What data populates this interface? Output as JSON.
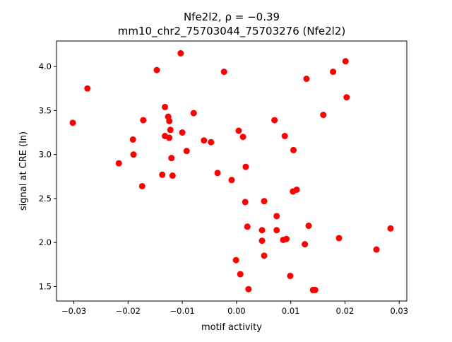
{
  "chart_data": {
    "type": "scatter",
    "title": "Nfe2l2, ρ = −0.39",
    "subtitle": "mm10_chr2_75703044_75703276 (Nfe2l2)",
    "xlabel": "motif activity",
    "ylabel": "signal at CRE (ln)",
    "xlim": [
      -0.0332,
      0.0314
    ],
    "ylim": [
      1.335,
      4.29
    ],
    "xticks": [
      -0.03,
      -0.02,
      -0.01,
      0.0,
      0.01,
      0.02,
      0.03
    ],
    "xtick_labels": [
      "−0.03",
      "−0.02",
      "−0.01",
      "0.00",
      "0.01",
      "0.02",
      "0.03"
    ],
    "yticks": [
      1.5,
      2.0,
      2.5,
      3.0,
      3.5,
      4.0
    ],
    "ytick_labels": [
      "1.5",
      "2.0",
      "2.5",
      "3.0",
      "3.5",
      "4.0"
    ],
    "grid": false,
    "marker_color": "#ff0000",
    "points": [
      [
        -0.0302,
        3.36
      ],
      [
        -0.0275,
        3.75
      ],
      [
        -0.0217,
        2.9
      ],
      [
        -0.0191,
        3.17
      ],
      [
        -0.019,
        3.0
      ],
      [
        -0.0174,
        2.64
      ],
      [
        -0.0172,
        3.39
      ],
      [
        -0.0147,
        3.96
      ],
      [
        -0.0137,
        2.77
      ],
      [
        -0.0132,
        3.54
      ],
      [
        -0.0132,
        3.21
      ],
      [
        -0.0126,
        3.43
      ],
      [
        -0.0124,
        3.38
      ],
      [
        -0.0124,
        3.19
      ],
      [
        -0.0122,
        3.28
      ],
      [
        -0.012,
        2.96
      ],
      [
        -0.0118,
        2.76
      ],
      [
        -0.0103,
        4.15
      ],
      [
        -0.01,
        3.25
      ],
      [
        -0.0092,
        3.04
      ],
      [
        -0.0079,
        3.47
      ],
      [
        -0.006,
        3.16
      ],
      [
        -0.0047,
        3.14
      ],
      [
        -0.0035,
        2.79
      ],
      [
        -0.0023,
        3.94
      ],
      [
        -0.0009,
        2.71
      ],
      [
        -0.0001,
        1.8
      ],
      [
        0.0004,
        3.27
      ],
      [
        0.0007,
        1.64
      ],
      [
        0.0012,
        3.2
      ],
      [
        0.0016,
        2.46
      ],
      [
        0.0017,
        2.86
      ],
      [
        0.002,
        2.18
      ],
      [
        0.0022,
        1.47
      ],
      [
        0.0047,
        2.14
      ],
      [
        0.0047,
        2.02
      ],
      [
        0.0051,
        2.47
      ],
      [
        0.0051,
        1.85
      ],
      [
        0.007,
        3.39
      ],
      [
        0.0074,
        2.3
      ],
      [
        0.0074,
        2.14
      ],
      [
        0.0086,
        2.03
      ],
      [
        0.0089,
        3.21
      ],
      [
        0.0092,
        2.04
      ],
      [
        0.0099,
        1.62
      ],
      [
        0.0104,
        2.58
      ],
      [
        0.0105,
        3.05
      ],
      [
        0.0111,
        2.6
      ],
      [
        0.0126,
        1.98
      ],
      [
        0.0129,
        3.86
      ],
      [
        0.0133,
        2.19
      ],
      [
        0.0141,
        1.46
      ],
      [
        0.0145,
        1.46
      ],
      [
        0.016,
        3.45
      ],
      [
        0.0178,
        3.94
      ],
      [
        0.0189,
        2.05
      ],
      [
        0.0201,
        4.06
      ],
      [
        0.0203,
        3.65
      ],
      [
        0.0258,
        1.92
      ],
      [
        0.0284,
        2.16
      ]
    ]
  }
}
